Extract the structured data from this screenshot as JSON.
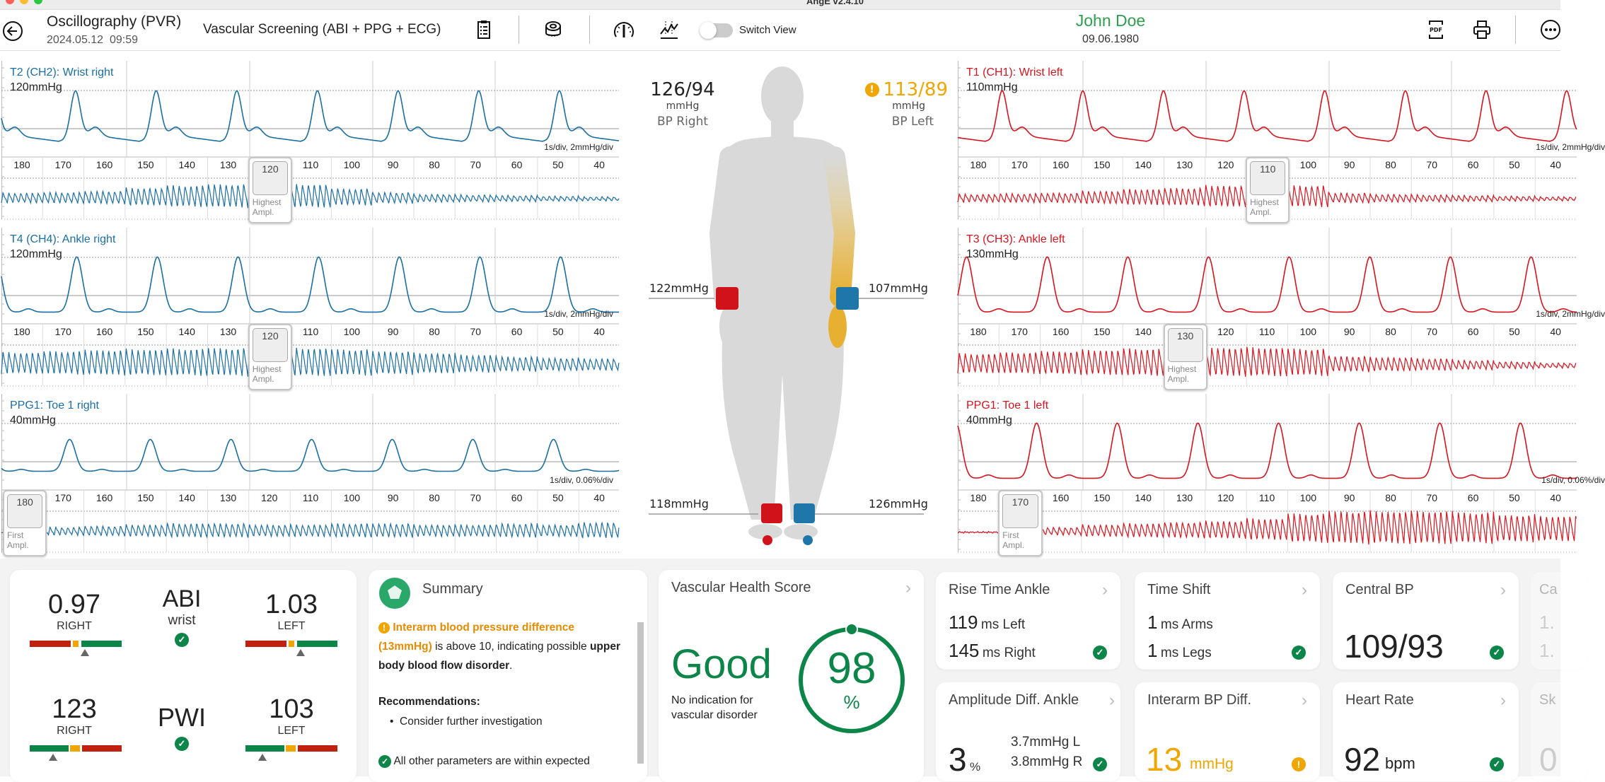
{
  "window": {
    "title": "AngE v2.4.10"
  },
  "header": {
    "title": "Oscillography (PVR)",
    "datetime": "2024.05.12  09:59",
    "exam": "Vascular Screening (ABI + PPG + ECG)",
    "switch_view": "Switch View",
    "switch_on": false,
    "patient_name": "John Doe",
    "patient_dob": "09.06.1980",
    "icons": [
      "back-icon",
      "clipboard-icon",
      "cuff-icon",
      "gauge-icon",
      "chart-icon",
      "pdf-icon",
      "printer-icon",
      "more-icon"
    ],
    "pdf_text": "PDF"
  },
  "colors": {
    "right": "#d7141e",
    "left": "#1a6fa3",
    "good": "#0b8548",
    "warning": "#f0a500",
    "name": "#2e9e4f"
  },
  "scale_ticks": [
    "180",
    "170",
    "160",
    "150",
    "140",
    "130",
    "120",
    "110",
    "100",
    "90",
    "80",
    "70",
    "60",
    "50",
    "40"
  ],
  "panels": {
    "left": [
      {
        "title": "T2 (CH2): Wrist right",
        "pressure": "120mmHg",
        "scale": "1s/div, 2mmHg/div",
        "marker_value": "120",
        "marker_label": "Highest Ampl."
      },
      {
        "title": "T4 (CH4): Ankle right",
        "pressure": "120mmHg",
        "scale": "1s/div, 2mmHg/div",
        "marker_value": "120",
        "marker_label": "Highest Ampl."
      },
      {
        "title": "PPG1: Toe 1 right",
        "pressure": "40mmHg",
        "scale": "1s/div, 0.06%/div",
        "marker_value": "180",
        "marker_label": "First Ampl."
      }
    ],
    "right": [
      {
        "title": "T1 (CH1): Wrist left",
        "pressure": "110mmHg",
        "scale": "1s/div, 2mmHg/div",
        "marker_value": "110",
        "marker_label": "Highest Ampl."
      },
      {
        "title": "T3 (CH3): Ankle left",
        "pressure": "130mmHg",
        "scale": "1s/div, 2mmHg/div",
        "marker_value": "130",
        "marker_label": "Highest Ampl."
      },
      {
        "title": "PPG1: Toe 1 left",
        "pressure": "40mmHg",
        "scale": "1s/div, 0.06%/div",
        "marker_value": "170",
        "marker_label": "First Ampl."
      }
    ]
  },
  "body": {
    "bp_right": {
      "value": "126/94",
      "unit": "mmHg",
      "label": "BP Right"
    },
    "bp_left": {
      "value": "113/89",
      "unit": "mmHg",
      "label": "BP Left",
      "warning": true
    },
    "wrist_right": "122mmHg",
    "wrist_left": "107mmHg",
    "ankle_right": "118mmHg",
    "ankle_left": "126mmHg"
  },
  "abi_card": {
    "abi": {
      "title": "ABI",
      "subtitle": "wrist",
      "right_value": "0.97",
      "right_label": "RIGHT",
      "left_value": "1.03",
      "left_label": "LEFT",
      "right_marker": 0.55,
      "left_marker": 0.6,
      "status": "ok"
    },
    "pwi": {
      "title": "PWI",
      "right_value": "123",
      "right_label": "RIGHT",
      "left_value": "103",
      "left_label": "LEFT",
      "right_marker": 0.24,
      "left_marker": 0.17,
      "status": "ok"
    }
  },
  "summary": {
    "title": "Summary",
    "warning_bold": "Interarm blood pressure difference (13mmHg)",
    "warning_text": " is above 10, indicating possible ",
    "warning_bold2": "upper body blood flow disorder",
    "warning_end": ".",
    "rec_title": "Recommendations:",
    "rec_items": [
      "Consider further investigation"
    ],
    "ok_text": "All other parameters are within expected"
  },
  "vhs": {
    "title": "Vascular Health Score",
    "rating": "Good",
    "description_line1": "No indication for",
    "description_line2": "vascular disorder",
    "score": "98",
    "unit": "%",
    "score_fraction": 0.98
  },
  "cards": {
    "rise_time": {
      "title": "Rise Time Ankle",
      "rows": [
        {
          "value": "119",
          "unit": "ms Left"
        },
        {
          "value": "145",
          "unit": "ms Right"
        }
      ],
      "status": "ok"
    },
    "time_shift": {
      "title": "Time Shift",
      "rows": [
        {
          "value": "1",
          "unit": "ms Arms"
        },
        {
          "value": "1",
          "unit": "ms Legs"
        }
      ],
      "status": "ok"
    },
    "central_bp": {
      "title": "Central BP",
      "value": "109/93",
      "status": "ok"
    },
    "amplitude": {
      "title": "Amplitude Diff. Ankle",
      "value": "3",
      "unit": "%",
      "left": "3.7mmHg L",
      "right": "3.8mmHg R",
      "status": "ok"
    },
    "interarm": {
      "title": "Interarm BP Diff.",
      "value": "13",
      "unit": "mmHg",
      "status": "warning"
    },
    "heart_rate": {
      "title": "Heart Rate",
      "value": "92",
      "unit": "bpm",
      "status": "ok"
    },
    "faded_top": {
      "title": "Ca",
      "line1": "1.",
      "line2": "1."
    },
    "faded_bottom": {
      "title": "Sk",
      "value": "0"
    }
  }
}
